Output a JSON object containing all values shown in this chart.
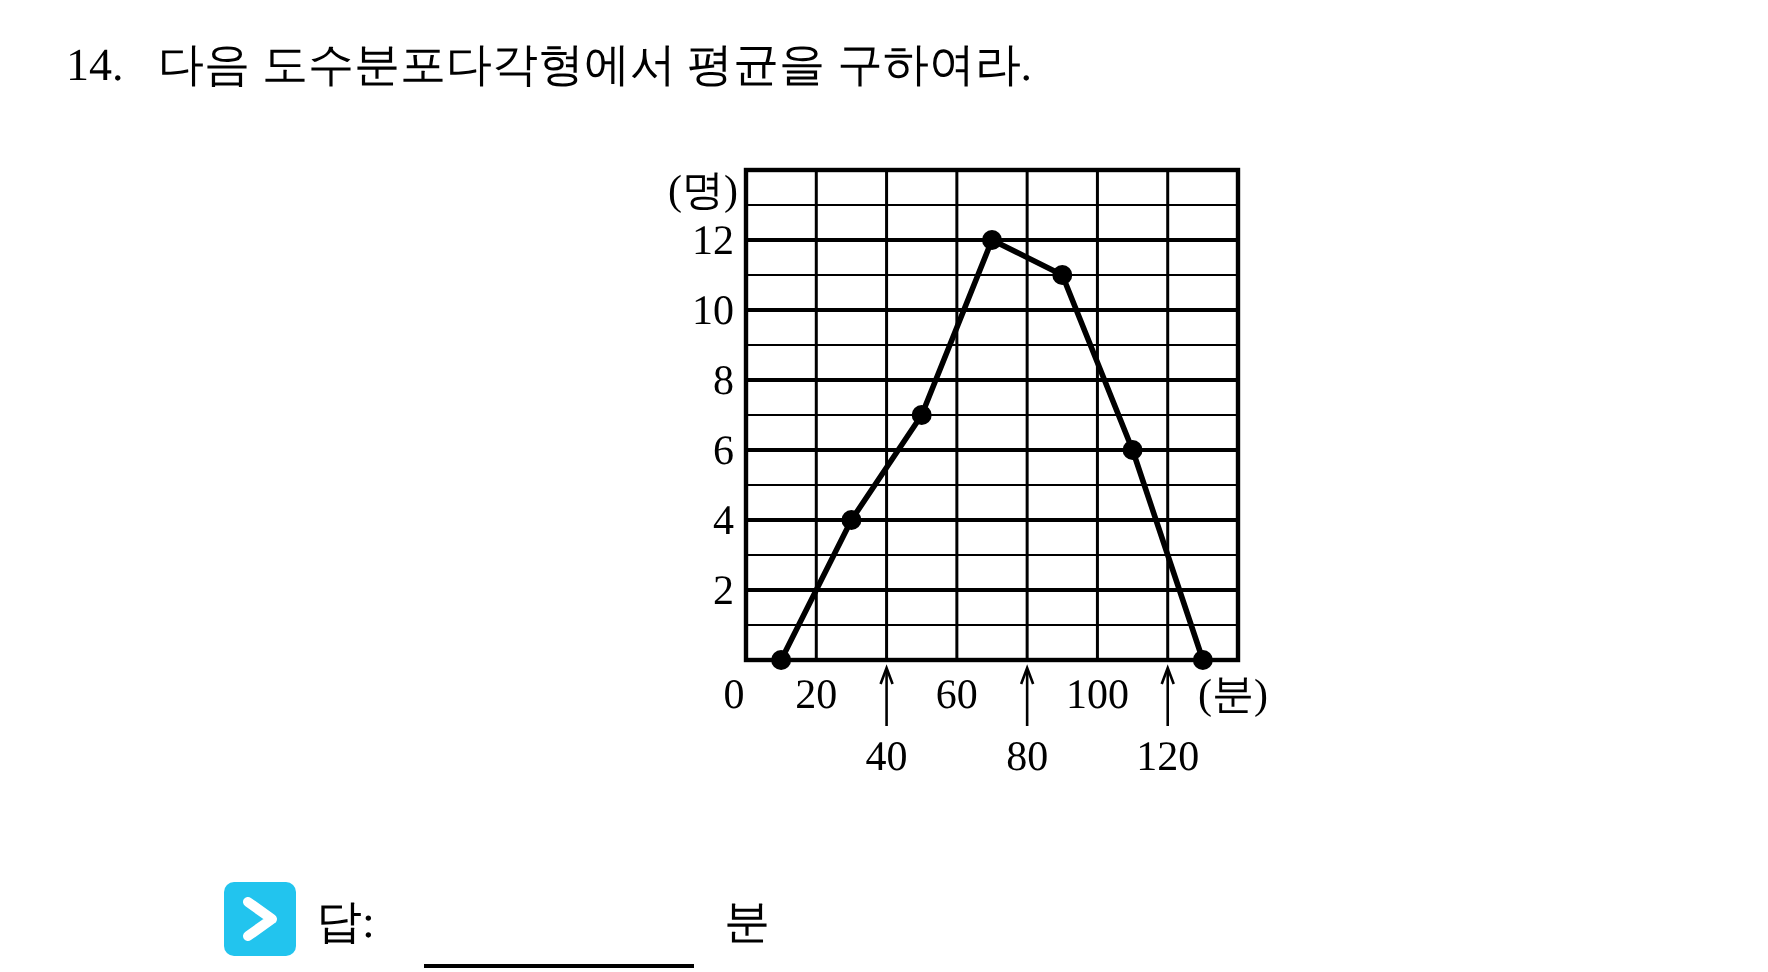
{
  "chart_data": {
    "type": "line",
    "title": "14.   다음 도수분포다각형에서 평균을 구하여라.",
    "xlabel": "(분)",
    "ylabel": "(명)",
    "x": [
      10,
      30,
      50,
      70,
      90,
      110,
      130
    ],
    "values": [
      0,
      4,
      7,
      12,
      11,
      6,
      0
    ],
    "color": "#000000",
    "xlim": [
      0,
      140
    ],
    "ylim": [
      0,
      14
    ],
    "xticks": [
      0,
      20,
      {
        "value": 40,
        "label": null
      },
      60,
      {
        "value": 80,
        "label": null
      },
      100,
      {
        "value": 120,
        "label": null
      }
    ],
    "yticks": [
      {
        "value": 1,
        "label": null
      },
      2,
      {
        "value": 3,
        "label": null
      },
      4,
      {
        "value": 5,
        "label": null
      },
      6,
      {
        "value": 7,
        "label": null
      },
      8,
      {
        "value": 9,
        "label": null
      },
      10,
      {
        "value": 11,
        "label": null
      },
      12,
      {
        "value": 13,
        "label": null
      }
    ],
    "grid": true,
    "marker": "circle",
    "annotations": [
      "40",
      "80",
      "120",
      "답:",
      "분"
    ]
  }
}
